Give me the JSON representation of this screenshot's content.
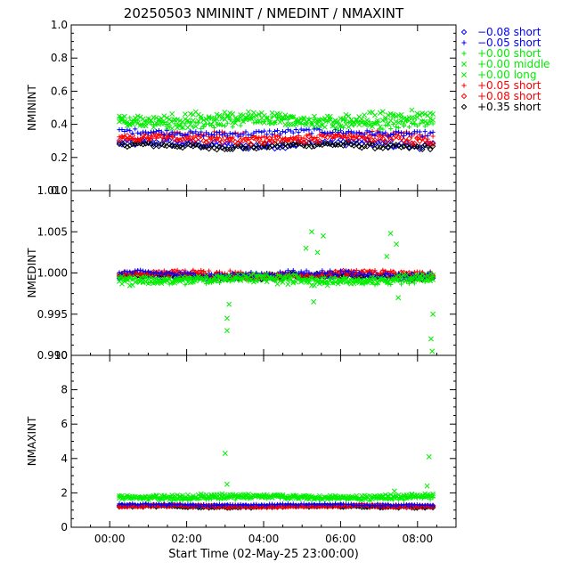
{
  "chart_data": [
    {
      "type": "scatter",
      "title": "20250503 NMININT / NMEDINT / NMAXINT",
      "ylabel": "NMININT",
      "ylim": [
        0.0,
        1.0
      ],
      "yticks": [
        "0.0",
        "0.2",
        "0.4",
        "0.6",
        "0.8",
        "1.0"
      ],
      "ytick_values": [
        0.0,
        0.2,
        0.4,
        0.6,
        0.8,
        1.0
      ],
      "series_levels": [
        {
          "name": "-0.08 short",
          "level": 0.28,
          "amp": 0.02
        },
        {
          "name": "-0.05 short",
          "level": 0.35,
          "amp": 0.015
        },
        {
          "name": "+0.00 short",
          "level": 0.41,
          "amp": 0.025
        },
        {
          "name": "+0.00 middle",
          "level": 0.42,
          "amp": 0.03
        },
        {
          "name": "+0.00 long",
          "level": 0.44,
          "amp": 0.03
        },
        {
          "name": "+0.05 short",
          "level": 0.33,
          "amp": 0.02
        },
        {
          "name": "+0.08 short",
          "level": 0.31,
          "amp": 0.02
        },
        {
          "name": "+0.35 short",
          "level": 0.27,
          "amp": 0.015
        }
      ]
    },
    {
      "type": "scatter",
      "ylabel": "NMEDINT",
      "ylim": [
        0.99,
        1.01
      ],
      "yticks": [
        "0.990",
        "0.995",
        "1.000",
        "1.005",
        "1.010"
      ],
      "ytick_values": [
        0.99,
        0.995,
        1.0,
        1.005,
        1.01
      ],
      "series_levels": [
        {
          "name": "-0.08 short",
          "level": 0.9996,
          "amp": 0.0003
        },
        {
          "name": "-0.05 short",
          "level": 0.9999,
          "amp": 0.0003
        },
        {
          "name": "+0.00 short",
          "level": 0.9992,
          "amp": 0.0004
        },
        {
          "name": "+0.00 middle",
          "level": 0.9993,
          "amp": 0.0004
        },
        {
          "name": "+0.00 long",
          "level": 0.9991,
          "amp": 0.0004
        },
        {
          "name": "+0.05 short",
          "level": 0.9999,
          "amp": 0.0003
        },
        {
          "name": "+0.08 short",
          "level": 0.9998,
          "amp": 0.0003
        },
        {
          "name": "+0.35 short",
          "level": 0.9996,
          "amp": 0.0003
        }
      ],
      "outliers": [
        {
          "x": 3.05,
          "y": 0.993
        },
        {
          "x": 3.05,
          "y": 0.9945
        },
        {
          "x": 3.1,
          "y": 0.9962
        },
        {
          "x": 5.1,
          "y": 1.003
        },
        {
          "x": 5.25,
          "y": 1.005
        },
        {
          "x": 5.4,
          "y": 1.0025
        },
        {
          "x": 5.55,
          "y": 1.0045
        },
        {
          "x": 5.3,
          "y": 0.9965
        },
        {
          "x": 7.3,
          "y": 1.0048
        },
        {
          "x": 7.45,
          "y": 1.0035
        },
        {
          "x": 7.2,
          "y": 1.002
        },
        {
          "x": 7.5,
          "y": 0.997
        },
        {
          "x": 8.35,
          "y": 0.992
        },
        {
          "x": 8.38,
          "y": 0.9905
        },
        {
          "x": 8.4,
          "y": 0.995
        }
      ]
    },
    {
      "type": "scatter",
      "ylabel": "NMAXINT",
      "ylim": [
        0,
        10
      ],
      "yticks": [
        "0",
        "2",
        "4",
        "6",
        "8",
        "10"
      ],
      "ytick_values": [
        0,
        2,
        4,
        6,
        8,
        10
      ],
      "series_levels": [
        {
          "name": "-0.08 short",
          "level": 1.25,
          "amp": 0.05
        },
        {
          "name": "-0.05 short",
          "level": 1.3,
          "amp": 0.05
        },
        {
          "name": "+0.00 short",
          "level": 1.7,
          "amp": 0.1
        },
        {
          "name": "+0.00 middle",
          "level": 1.75,
          "amp": 0.1
        },
        {
          "name": "+0.00 long",
          "level": 1.8,
          "amp": 0.1
        },
        {
          "name": "+0.05 short",
          "level": 1.25,
          "amp": 0.05
        },
        {
          "name": "+0.08 short",
          "level": 1.22,
          "amp": 0.05
        },
        {
          "name": "+0.35 short",
          "level": 1.2,
          "amp": 0.05
        }
      ],
      "outliers": [
        {
          "x": 3.0,
          "y": 4.3
        },
        {
          "x": 3.05,
          "y": 2.5
        },
        {
          "x": 8.3,
          "y": 4.1
        },
        {
          "x": 8.25,
          "y": 2.4
        },
        {
          "x": 7.4,
          "y": 2.1
        }
      ]
    }
  ],
  "shared_x": {
    "xlabel": "Start Time (02-May-25 23:00:00)",
    "xlim": [
      -1.0,
      9.0
    ],
    "xticks": [
      "00:00",
      "02:00",
      "04:00",
      "06:00",
      "08:00"
    ],
    "xtick_values": [
      0,
      2,
      4,
      6,
      8
    ],
    "data_range": [
      0.25,
      8.4
    ]
  },
  "legend": [
    {
      "symbol": "◇",
      "label": "−0.08 short",
      "color": "#0000ff"
    },
    {
      "symbol": "+",
      "label": "−0.05 short",
      "color": "#0000ff"
    },
    {
      "symbol": "+",
      "label": "+0.00 short",
      "color": "#00ee00"
    },
    {
      "symbol": "×",
      "label": "+0.00 middle",
      "color": "#00ee00"
    },
    {
      "symbol": "×",
      "label": "+0.00 long",
      "color": "#00ee00"
    },
    {
      "symbol": "+",
      "label": "+0.05 short",
      "color": "#ff0000"
    },
    {
      "symbol": "◇",
      "label": "+0.08 short",
      "color": "#ff0000"
    },
    {
      "symbol": "◇",
      "label": "+0.35 short",
      "color": "#000000"
    }
  ],
  "colors": {
    "blue": "#0000ff",
    "green": "#00ee00",
    "red": "#ff0000",
    "black": "#000000"
  }
}
